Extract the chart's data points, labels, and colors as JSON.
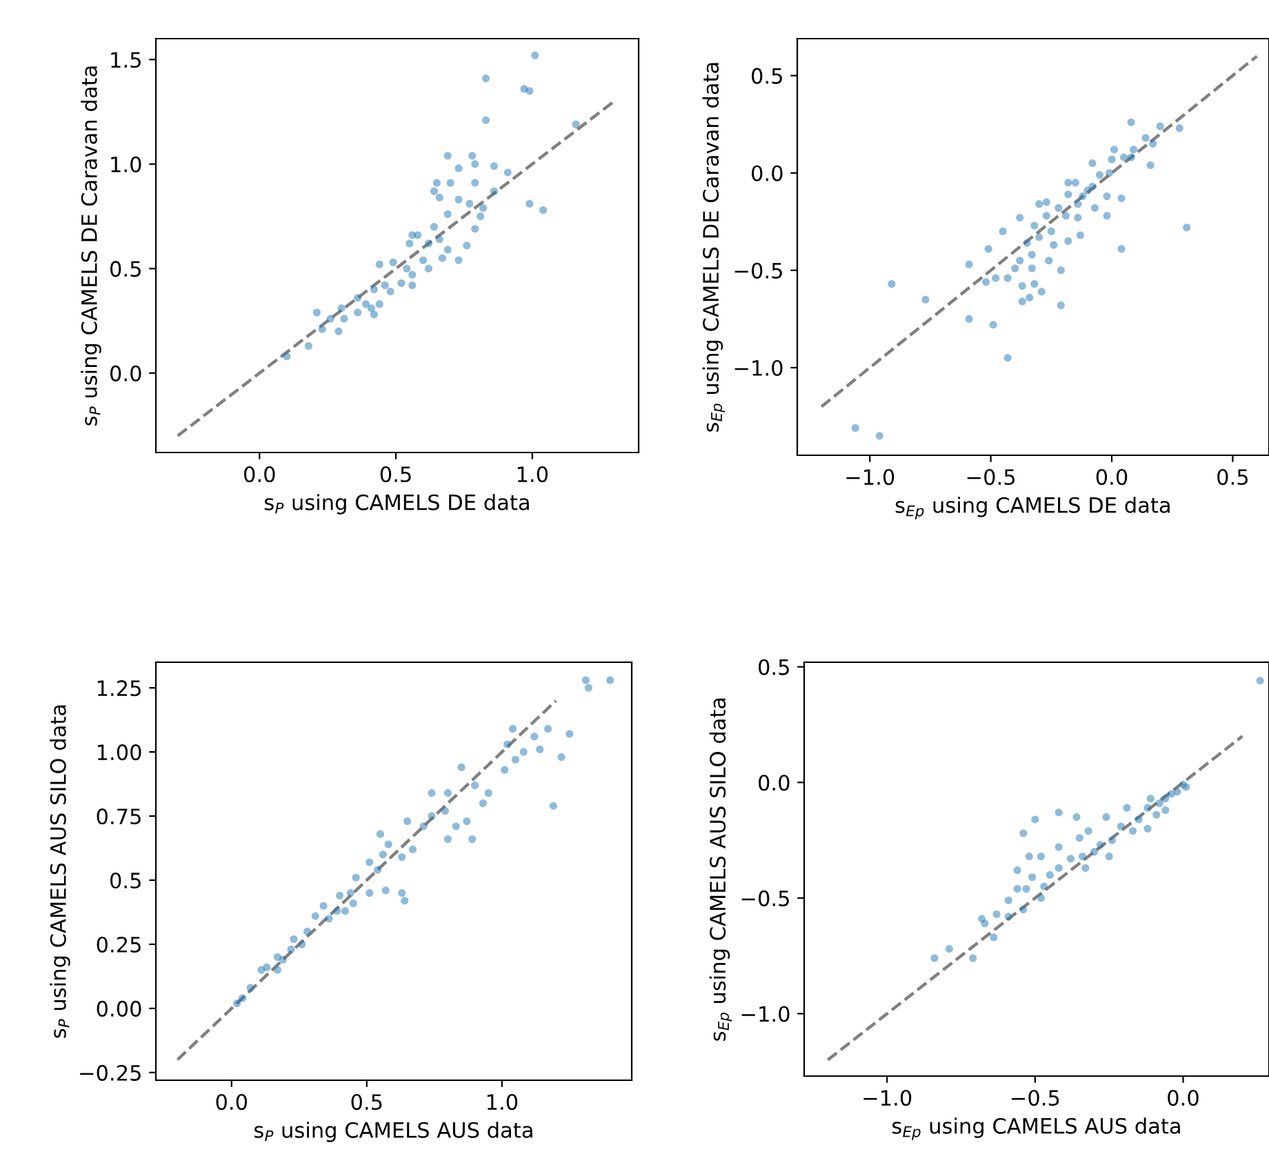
{
  "chart_data": [
    {
      "type": "scatter",
      "xlabel": "s$_{P}$ using CAMELS DE data",
      "ylabel": "s$_{P}$ using CAMELS DE Caravan data",
      "xlim": [
        -0.38,
        1.39
      ],
      "ylim": [
        -0.38,
        1.6
      ],
      "xticks": [
        {
          "value": 0,
          "label": "0.0"
        },
        {
          "value": 0.5,
          "label": "0.5"
        },
        {
          "value": 1,
          "label": "1.0"
        }
      ],
      "yticks": [
        {
          "value": 0,
          "label": "0.0"
        },
        {
          "value": 0.5,
          "label": "0.5"
        },
        {
          "value": 1,
          "label": "1.0"
        },
        {
          "value": 1.5,
          "label": "1.5"
        }
      ],
      "grid": false,
      "marker": "circle",
      "series": [
        {
          "color": "#1f77b4",
          "x": [
            1.01,
            0.83,
            0.97,
            0.99,
            0.83,
            1.16,
            0.69,
            0.78,
            0.79,
            0.73,
            0.86,
            0.91,
            0.65,
            0.7,
            0.79,
            0.86,
            0.64,
            0.66,
            0.73,
            0.99,
            1.04,
            0.77,
            0.82,
            0.69,
            0.81,
            0.79,
            0.64,
            0.56,
            0.58,
            0.66,
            0.55,
            0.62,
            0.76,
            0.69,
            0.73,
            0.67,
            0.6,
            0.62,
            0.49,
            0.54,
            0.44,
            0.56,
            0.52,
            0.56,
            0.46,
            0.42,
            0.48,
            0.36,
            0.39,
            0.44,
            0.41,
            0.3,
            0.36,
            0.42,
            0.21,
            0.26,
            0.31,
            0.23,
            0.29,
            0.18,
            0.1
          ],
          "values": [
            1.52,
            1.41,
            1.36,
            1.35,
            1.21,
            1.19,
            1.04,
            1.04,
            1.0,
            0.98,
            0.99,
            0.96,
            0.91,
            0.91,
            0.91,
            0.87,
            0.87,
            0.84,
            0.83,
            0.81,
            0.78,
            0.81,
            0.79,
            0.76,
            0.75,
            0.69,
            0.7,
            0.66,
            0.66,
            0.64,
            0.62,
            0.62,
            0.61,
            0.59,
            0.54,
            0.55,
            0.54,
            0.5,
            0.53,
            0.5,
            0.52,
            0.47,
            0.43,
            0.42,
            0.42,
            0.4,
            0.39,
            0.36,
            0.33,
            0.33,
            0.31,
            0.31,
            0.29,
            0.28,
            0.29,
            0.26,
            0.26,
            0.21,
            0.2,
            0.13,
            0.08
          ]
        },
        {
          "type": "line",
          "color": "#808080",
          "line_style": "dashed",
          "marker": "none",
          "x": [
            -0.3,
            1.3
          ],
          "values": [
            -0.3,
            1.3
          ]
        }
      ]
    },
    {
      "type": "scatter",
      "xlabel": "s$_{Ep}$ using CAMELS DE data",
      "ylabel": "s$_{Ep}$ using CAMELS DE Caravan data",
      "xlim": [
        -1.3,
        0.65
      ],
      "ylim": [
        -1.45,
        0.69
      ],
      "xticks": [
        {
          "value": -1,
          "label": "−1.0"
        },
        {
          "value": -0.5,
          "label": "−0.5"
        },
        {
          "value": 0,
          "label": "0.0"
        },
        {
          "value": 0.5,
          "label": "0.5"
        }
      ],
      "yticks": [
        {
          "value": -1,
          "label": "−1.0"
        },
        {
          "value": -0.5,
          "label": "−0.5"
        },
        {
          "value": 0,
          "label": "0.0"
        },
        {
          "value": 0.5,
          "label": "0.5"
        }
      ],
      "grid": false,
      "marker": "circle",
      "series": [
        {
          "color": "#1f77b4",
          "x": [
            -1.06,
            -0.96,
            -0.91,
            -0.77,
            -0.59,
            -0.49,
            -0.43,
            -0.59,
            -0.51,
            -0.45,
            -0.38,
            -0.52,
            -0.48,
            -0.43,
            -0.4,
            -0.38,
            -0.37,
            -0.37,
            -0.34,
            -0.32,
            -0.29,
            -0.21,
            -0.33,
            -0.33,
            -0.26,
            -0.21,
            -0.35,
            -0.3,
            -0.32,
            -0.3,
            -0.27,
            -0.27,
            -0.25,
            -0.24,
            -0.22,
            -0.19,
            -0.18,
            -0.13,
            -0.18,
            -0.15,
            -0.18,
            -0.14,
            -0.12,
            -0.1,
            -0.08,
            -0.07,
            -0.14,
            -0.02,
            -0.02,
            -0.05,
            -0.08,
            -0.01,
            0.04,
            0.04,
            0.0,
            0.01,
            0.05,
            0.08,
            0.09,
            0.08,
            0.14,
            0.17,
            0.16,
            0.2,
            0.28,
            0.31
          ],
          "values": [
            -1.31,
            -1.35,
            -0.57,
            -0.65,
            -0.75,
            -0.78,
            -0.95,
            -0.47,
            -0.39,
            -0.3,
            -0.23,
            -0.56,
            -0.54,
            -0.54,
            -0.49,
            -0.45,
            -0.58,
            -0.66,
            -0.64,
            -0.57,
            -0.61,
            -0.68,
            -0.49,
            -0.42,
            -0.45,
            -0.5,
            -0.36,
            -0.33,
            -0.27,
            -0.16,
            -0.15,
            -0.22,
            -0.3,
            -0.37,
            -0.18,
            -0.22,
            -0.35,
            -0.32,
            -0.05,
            -0.05,
            -0.11,
            -0.16,
            -0.12,
            -0.09,
            -0.07,
            -0.18,
            -0.23,
            -0.22,
            -0.12,
            -0.01,
            0.05,
            0.0,
            -0.13,
            -0.39,
            0.07,
            0.12,
            0.08,
            0.08,
            0.12,
            0.26,
            0.18,
            0.15,
            0.04,
            0.24,
            0.23,
            -0.28
          ]
        },
        {
          "type": "line",
          "color": "#808080",
          "line_style": "dashed",
          "marker": "none",
          "x": [
            -1.2,
            0.6
          ],
          "values": [
            -1.2,
            0.6
          ]
        }
      ]
    },
    {
      "type": "scatter",
      "xlabel": "s$_{P}$ using CAMELS AUS data",
      "ylabel": "s$_{P}$ using CAMELS AUS SILO data",
      "xlim": [
        -0.28,
        1.48
      ],
      "ylim": [
        -0.28,
        1.35
      ],
      "xticks": [
        {
          "value": 0,
          "label": "0.0"
        },
        {
          "value": 0.5,
          "label": "0.5"
        },
        {
          "value": 1,
          "label": "1.0"
        }
      ],
      "yticks": [
        {
          "value": -0.25,
          "label": "−0.25"
        },
        {
          "value": 0,
          "label": "0.00"
        },
        0.25,
        0.5,
        0.75,
        {
          "value": 1,
          "label": "1.00"
        },
        1.25
      ],
      "grid": false,
      "marker": "circle",
      "series": [
        {
          "color": "#1f77b4",
          "x": [
            1.31,
            1.32,
            1.4,
            1.04,
            1.17,
            1.25,
            1.12,
            1.14,
            1.22,
            1.08,
            1.02,
            1.05,
            1.01,
            0.85,
            0.9,
            0.95,
            0.93,
            1.19,
            0.74,
            0.8,
            0.79,
            0.74,
            0.87,
            0.83,
            0.89,
            0.8,
            0.65,
            0.71,
            0.55,
            0.58,
            0.67,
            0.63,
            0.56,
            0.51,
            0.46,
            0.54,
            0.57,
            0.63,
            0.64,
            0.51,
            0.44,
            0.4,
            0.34,
            0.45,
            0.42,
            0.31,
            0.36,
            0.39,
            0.28,
            0.23,
            0.22,
            0.26,
            0.17,
            0.13,
            0.11,
            0.07,
            0.04,
            0.02,
            0.17,
            0.19
          ],
          "values": [
            1.28,
            1.25,
            1.28,
            1.09,
            1.09,
            1.07,
            1.06,
            1.01,
            0.98,
            1.0,
            1.03,
            0.97,
            0.93,
            0.94,
            0.87,
            0.84,
            0.8,
            0.79,
            0.84,
            0.84,
            0.77,
            0.75,
            0.73,
            0.71,
            0.66,
            0.66,
            0.73,
            0.71,
            0.68,
            0.64,
            0.62,
            0.59,
            0.6,
            0.57,
            0.51,
            0.54,
            0.46,
            0.45,
            0.42,
            0.45,
            0.45,
            0.44,
            0.4,
            0.41,
            0.38,
            0.36,
            0.35,
            0.38,
            0.3,
            0.27,
            0.23,
            0.25,
            0.2,
            0.16,
            0.15,
            0.08,
            0.04,
            0.02,
            0.15,
            0.19
          ]
        },
        {
          "type": "line",
          "color": "#808080",
          "line_style": "dashed",
          "marker": "none",
          "x": [
            -0.2,
            1.2
          ],
          "values": [
            -0.2,
            1.2
          ]
        }
      ]
    },
    {
      "type": "scatter",
      "xlabel": "s$_{Ep}$ using CAMELS AUS data",
      "ylabel": "s$_{Ep}$ using CAMELS AUS SILO data",
      "xlim": [
        -1.28,
        0.29
      ],
      "ylim": [
        -1.27,
        0.52
      ],
      "xticks": [
        {
          "value": -1,
          "label": "−1.0"
        },
        {
          "value": -0.5,
          "label": "−0.5"
        },
        {
          "value": 0,
          "label": "0.0"
        }
      ],
      "yticks": [
        {
          "value": -1,
          "label": "−1.0"
        },
        {
          "value": -0.5,
          "label": "−0.5"
        },
        {
          "value": 0,
          "label": "0.0"
        },
        {
          "value": 0.5,
          "label": "0.5"
        }
      ],
      "grid": false,
      "marker": "circle",
      "series": [
        {
          "color": "#1f77b4",
          "x": [
            0.26,
            -0.84,
            -0.79,
            -0.71,
            -0.67,
            -0.68,
            -0.64,
            -0.63,
            -0.59,
            -0.59,
            -0.56,
            -0.56,
            -0.54,
            -0.5,
            -0.52,
            -0.48,
            -0.51,
            -0.53,
            -0.54,
            -0.48,
            -0.47,
            -0.45,
            -0.42,
            -0.42,
            -0.42,
            -0.38,
            -0.36,
            -0.35,
            -0.32,
            -0.34,
            -0.33,
            -0.3,
            -0.28,
            -0.26,
            -0.25,
            -0.24,
            -0.21,
            -0.19,
            -0.17,
            -0.15,
            -0.12,
            -0.12,
            -0.09,
            -0.06,
            -0.06,
            -0.04,
            -0.02,
            0.0,
            0.01,
            -0.08,
            -0.11
          ],
          "values": [
            0.44,
            -0.76,
            -0.72,
            -0.76,
            -0.61,
            -0.59,
            -0.67,
            -0.57,
            -0.58,
            -0.51,
            -0.46,
            -0.38,
            -0.22,
            -0.16,
            -0.32,
            -0.32,
            -0.41,
            -0.46,
            -0.55,
            -0.5,
            -0.45,
            -0.4,
            -0.37,
            -0.13,
            -0.28,
            -0.33,
            -0.15,
            -0.24,
            -0.21,
            -0.32,
            -0.37,
            -0.3,
            -0.27,
            -0.15,
            -0.32,
            -0.25,
            -0.19,
            -0.11,
            -0.21,
            -0.16,
            -0.11,
            -0.2,
            -0.14,
            -0.12,
            -0.07,
            -0.05,
            -0.04,
            -0.01,
            -0.02,
            -0.09,
            -0.07
          ]
        },
        {
          "type": "line",
          "color": "#808080",
          "line_style": "dashed",
          "marker": "none",
          "x": [
            -1.2,
            0.2
          ],
          "values": [
            -1.2,
            0.2
          ]
        }
      ]
    }
  ]
}
